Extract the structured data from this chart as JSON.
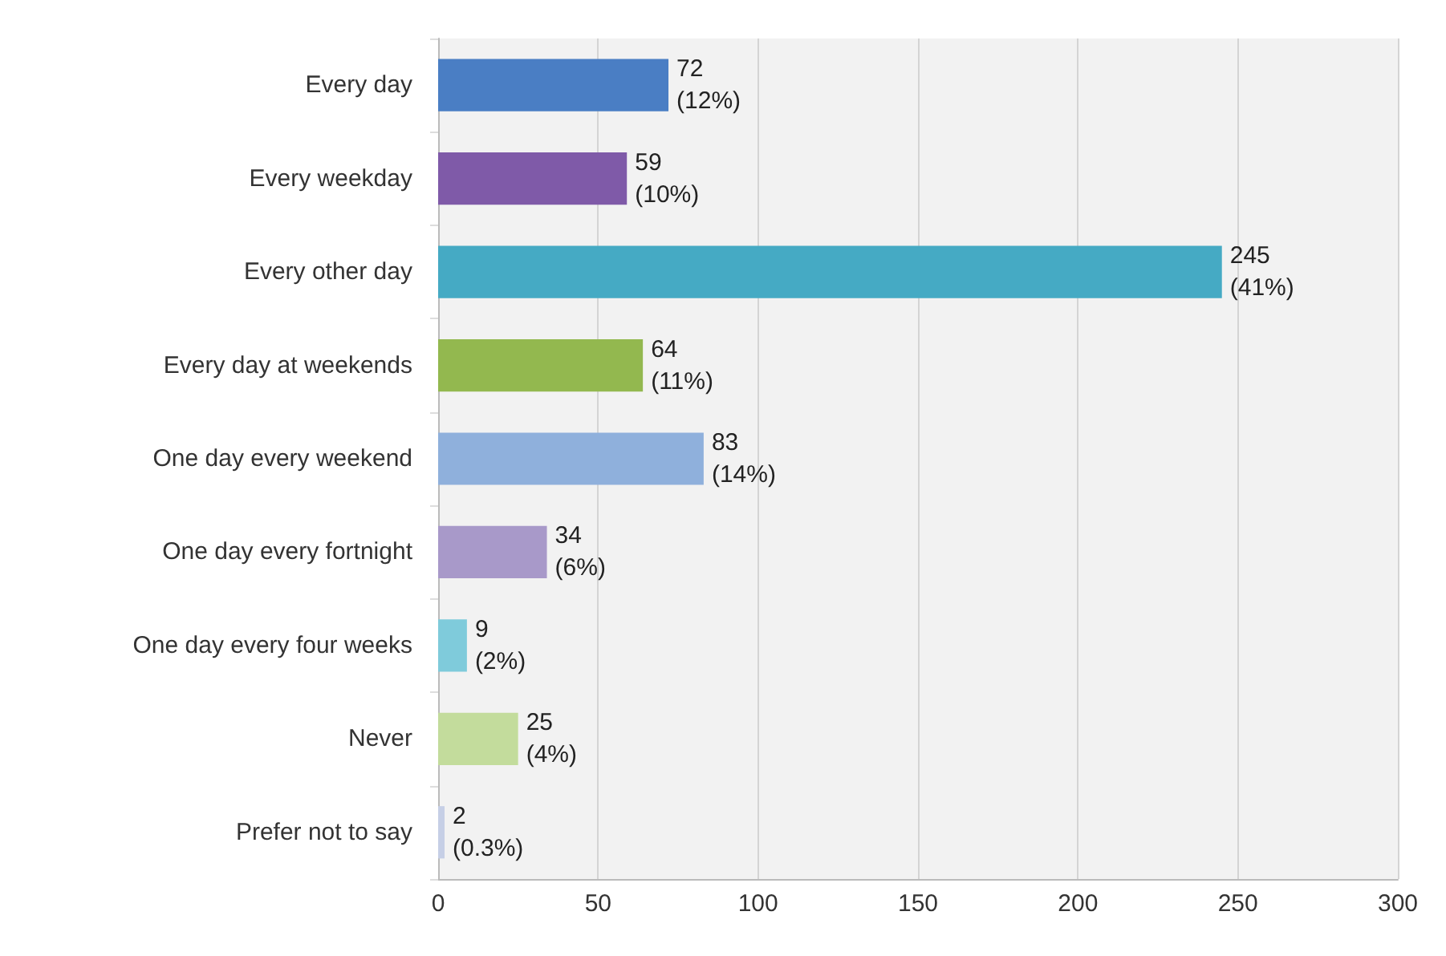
{
  "chart_data": {
    "type": "bar",
    "orientation": "horizontal",
    "categories": [
      "Every day",
      "Every weekday",
      "Every other day",
      "Every day at weekends",
      "One day every weekend",
      "One day every fortnight",
      "One day every four weeks",
      "Never",
      "Prefer not to say"
    ],
    "values": [
      72,
      59,
      245,
      64,
      83,
      34,
      9,
      25,
      2
    ],
    "colors": [
      "#4a7ec4",
      "#7f5aa8",
      "#45aac4",
      "#93b84f",
      "#8fb0dc",
      "#a899c9",
      "#7fcbdb",
      "#c3dc9c",
      "#c6cfe6"
    ],
    "value_labels": [
      "72\n(12%)",
      "59\n(10%)",
      "245\n(41%)",
      "64\n(11%)",
      "83\n(14%)",
      "34\n(6%)",
      "9\n(2%)",
      "25\n(4%)",
      "2\n(0.3%)"
    ],
    "xlim": [
      0,
      300
    ],
    "xticks": [
      0,
      50,
      100,
      150,
      200,
      250,
      300
    ],
    "grid": "x"
  }
}
